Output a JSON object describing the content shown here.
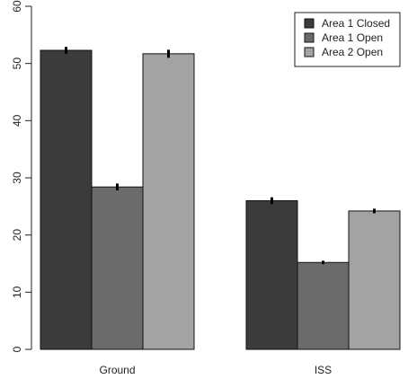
{
  "chart_data": {
    "type": "bar",
    "title": "",
    "xlabel": "",
    "ylabel": "",
    "categories": [
      "Ground",
      "ISS"
    ],
    "ylim": [
      0,
      60
    ],
    "yticks": [
      0,
      10,
      20,
      30,
      40,
      50,
      60
    ],
    "grid": false,
    "legend": {
      "placement": "top-right",
      "entries": [
        "Area 1 Closed",
        "Area 1 Open",
        "Area 2 Open"
      ]
    },
    "series": [
      {
        "name": "Area 1 Closed",
        "values": [
          52.3,
          26.0
        ],
        "errors": [
          0.6,
          0.6
        ],
        "color": "#3b3b3b"
      },
      {
        "name": "Area 1 Open",
        "values": [
          28.4,
          15.2
        ],
        "errors": [
          0.6,
          0.3
        ],
        "color": "#6b6b6b"
      },
      {
        "name": "Area 2 Open",
        "values": [
          51.7,
          24.2
        ],
        "errors": [
          0.7,
          0.4
        ],
        "color": "#a3a3a3"
      }
    ]
  }
}
